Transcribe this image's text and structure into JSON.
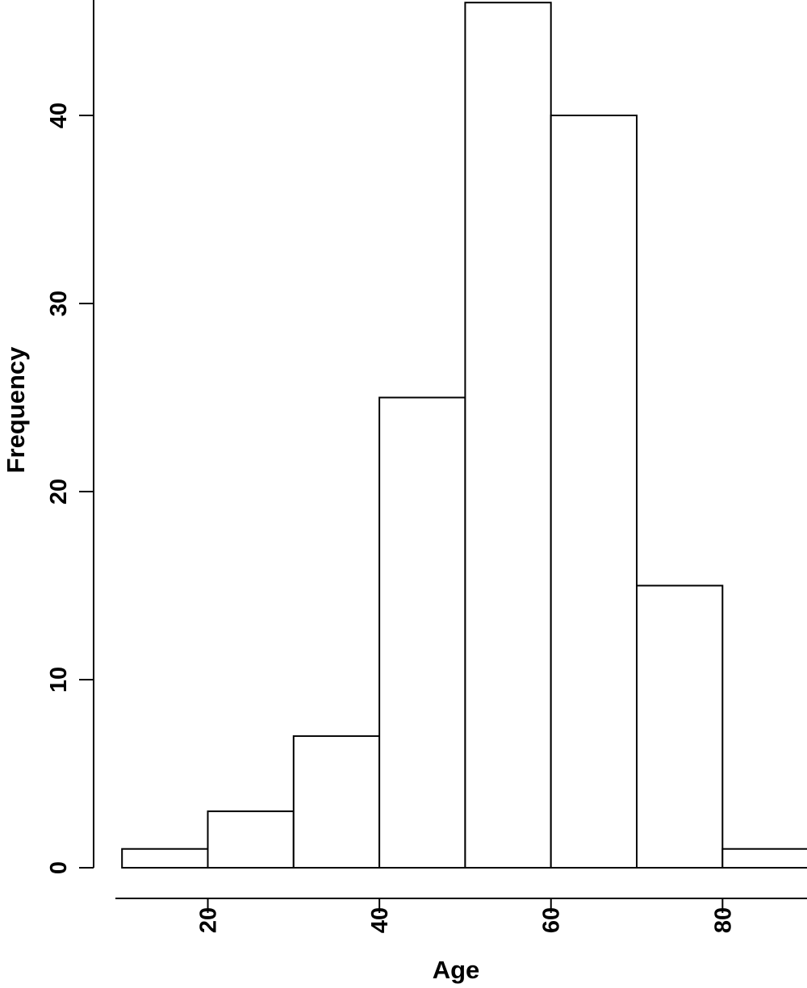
{
  "chart_data": {
    "type": "bar",
    "subtype": "histogram",
    "bin_edges": [
      10,
      20,
      30,
      40,
      50,
      60,
      70,
      80,
      90
    ],
    "values": [
      1,
      3,
      7,
      25,
      46,
      40,
      15,
      1
    ],
    "xlabel": "Age",
    "ylabel": "Frequency",
    "x_ticks": [
      20,
      40,
      60,
      80
    ],
    "x_tick_labels": [
      "20",
      "40",
      "60",
      "80"
    ],
    "y_ticks": [
      0,
      10,
      20,
      30,
      40
    ],
    "y_tick_labels": [
      "0",
      "10",
      "20",
      "30",
      "40"
    ],
    "xlim": [
      10,
      90
    ],
    "ylim": [
      0,
      46
    ],
    "bar_fill": "#ffffff",
    "bar_stroke": "#000000",
    "grid": false,
    "legend": "none"
  }
}
